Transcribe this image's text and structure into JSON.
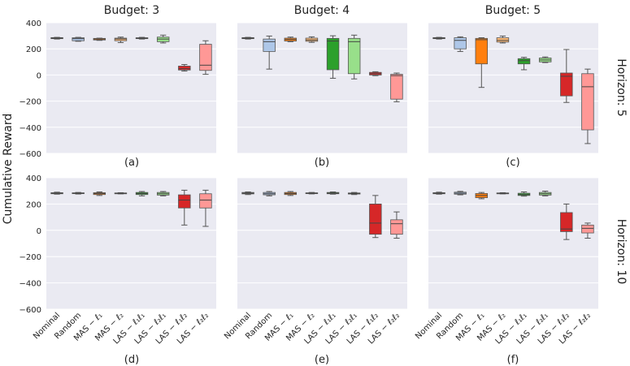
{
  "figure": {
    "ylabel": "Cumulative Reward",
    "column_titles": [
      "Budget: 3",
      "Budget: 4",
      "Budget: 5"
    ],
    "row_titles": [
      "Horizon: 5",
      "Horizon: 10"
    ],
    "yticks": [
      "400",
      "200",
      "0",
      "−200",
      "−400",
      "−600"
    ],
    "colors": [
      "#a6a6a6",
      "#aec7e8",
      "#ff7f0e",
      "#ffbb78",
      "#2ca02c",
      "#98df8a",
      "#d62728",
      "#ff9896"
    ],
    "categories": [
      "Nominal",
      "Random",
      "MAS − ℓ₁",
      "MAS − ℓ₂",
      "LAS − ℓ₁ℓ₁",
      "LAS − ℓ₂ℓ₁",
      "LAS − ℓ₁ℓ₂",
      "LAS − ℓ₂ℓ₂"
    ]
  },
  "chart_data": [
    {
      "panel": "(a)",
      "type": "box",
      "budget": 3,
      "horizon": 5,
      "ylim": [
        -600,
        400
      ],
      "boxes": [
        [
          275,
          278,
          282,
          286,
          288
        ],
        [
          258,
          262,
          278,
          285,
          288
        ],
        [
          265,
          268,
          275,
          280,
          282
        ],
        [
          248,
          262,
          275,
          282,
          290
        ],
        [
          275,
          278,
          282,
          285,
          288
        ],
        [
          245,
          255,
          275,
          290,
          305
        ],
        [
          30,
          38,
          48,
          68,
          80
        ],
        [
          5,
          35,
          75,
          235,
          262
        ]
      ]
    },
    {
      "panel": "(b)",
      "type": "box",
      "budget": 4,
      "horizon": 5,
      "ylim": [
        -600,
        400
      ],
      "boxes": [
        [
          275,
          278,
          282,
          286,
          288
        ],
        [
          45,
          180,
          255,
          275,
          298
        ],
        [
          255,
          260,
          272,
          282,
          290
        ],
        [
          250,
          258,
          268,
          282,
          292
        ],
        [
          -25,
          40,
          260,
          280,
          300
        ],
        [
          -30,
          10,
          255,
          280,
          305
        ],
        [
          -5,
          0,
          10,
          20,
          25
        ],
        [
          -205,
          -185,
          -5,
          5,
          15
        ]
      ]
    },
    {
      "panel": "(c)",
      "type": "box",
      "budget": 5,
      "horizon": 5,
      "ylim": [
        -600,
        400
      ],
      "boxes": [
        [
          275,
          278,
          282,
          286,
          288
        ],
        [
          180,
          200,
          265,
          285,
          292
        ],
        [
          -95,
          85,
          270,
          280,
          285
        ],
        [
          245,
          252,
          265,
          285,
          298
        ],
        [
          40,
          85,
          110,
          125,
          135
        ],
        [
          95,
          100,
          115,
          130,
          138
        ],
        [
          -210,
          -160,
          -10,
          15,
          195
        ],
        [
          -525,
          -420,
          -90,
          10,
          45
        ]
      ]
    },
    {
      "panel": "(d)",
      "type": "box",
      "budget": 3,
      "horizon": 10,
      "ylim": [
        -600,
        400
      ],
      "boxes": [
        [
          275,
          278,
          282,
          286,
          290
        ],
        [
          276,
          279,
          282,
          285,
          288
        ],
        [
          265,
          272,
          280,
          286,
          292
        ],
        [
          277,
          279,
          282,
          284,
          286
        ],
        [
          262,
          272,
          280,
          288,
          295
        ],
        [
          262,
          268,
          278,
          288,
          295
        ],
        [
          40,
          170,
          230,
          270,
          305
        ],
        [
          30,
          170,
          230,
          278,
          305
        ]
      ]
    },
    {
      "panel": "(e)",
      "type": "box",
      "budget": 4,
      "horizon": 10,
      "ylim": [
        -600,
        400
      ],
      "boxes": [
        [
          272,
          277,
          282,
          288,
          292
        ],
        [
          262,
          270,
          278,
          288,
          295
        ],
        [
          265,
          272,
          280,
          288,
          295
        ],
        [
          277,
          279,
          282,
          285,
          288
        ],
        [
          275,
          278,
          282,
          288,
          292
        ],
        [
          272,
          276,
          280,
          284,
          288
        ],
        [
          -55,
          -30,
          55,
          200,
          265
        ],
        [
          -60,
          -30,
          50,
          80,
          140
        ]
      ]
    },
    {
      "panel": "(f)",
      "type": "box",
      "budget": 5,
      "horizon": 10,
      "ylim": [
        -600,
        400
      ],
      "boxes": [
        [
          275,
          278,
          282,
          286,
          290
        ],
        [
          270,
          275,
          282,
          290,
          296
        ],
        [
          240,
          248,
          265,
          280,
          288
        ],
        [
          277,
          279,
          282,
          284,
          286
        ],
        [
          260,
          265,
          272,
          282,
          292
        ],
        [
          262,
          268,
          278,
          288,
          298
        ],
        [
          -70,
          -10,
          10,
          135,
          200
        ],
        [
          -60,
          -20,
          15,
          40,
          55
        ]
      ]
    }
  ]
}
